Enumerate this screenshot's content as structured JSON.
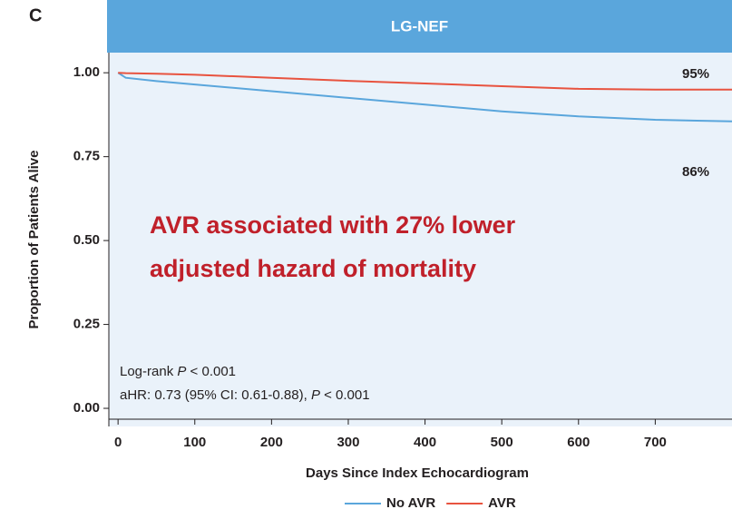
{
  "chart_data": {
    "type": "line",
    "panel_label": "C",
    "title": "LG-NEF",
    "x_label": "Days Since Index Echocardiogram",
    "y_label": "Proportion of Patients Alive",
    "x": [
      0,
      10,
      50,
      100,
      200,
      300,
      400,
      500,
      600,
      700,
      800
    ],
    "series": [
      {
        "name": "No AVR",
        "color": "#5aa6dc",
        "values": [
          1.0,
          0.985,
          0.975,
          0.965,
          0.945,
          0.925,
          0.905,
          0.885,
          0.87,
          0.86,
          0.855
        ]
      },
      {
        "name": "AVR",
        "color": "#e8533f",
        "values": [
          1.0,
          0.999,
          0.997,
          0.994,
          0.985,
          0.976,
          0.968,
          0.96,
          0.952,
          0.95,
          0.95
        ]
      }
    ],
    "xlim": [
      -12,
      800
    ],
    "ylim": [
      -0.054,
      1.06
    ],
    "xticks": [
      0,
      100,
      200,
      300,
      400,
      500,
      600,
      700
    ],
    "yticks": [
      {
        "value": 0,
        "label": "0.00"
      },
      {
        "value": 0.25,
        "label": "0.25"
      },
      {
        "value": 0.5,
        "label": "0.50"
      },
      {
        "value": 0.75,
        "label": "0.75"
      },
      {
        "value": 1,
        "label": "1.00"
      }
    ],
    "end_labels": [
      "86%",
      "95%"
    ],
    "headline": [
      "AVR associated with 27% lower",
      "adjusted hazard of mortality"
    ],
    "stats": [
      [
        "Log-rank ",
        "P",
        " < 0.001"
      ],
      [
        "aHR: 0.73 (95% CI: 0.61-0.88), ",
        "P",
        " < 0.001"
      ]
    ],
    "header_color": "#5aa6dc",
    "plot_background": "#eaf2fa",
    "headline_color": "#c0202a"
  }
}
